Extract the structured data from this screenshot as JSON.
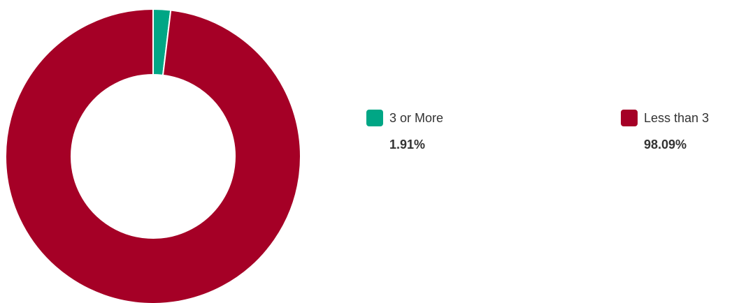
{
  "chart_data": {
    "type": "pie",
    "variant": "donut",
    "categories": [
      "3 or More",
      "Less than 3"
    ],
    "values": [
      1.91,
      98.09
    ],
    "value_labels": [
      "1.91%",
      "98.09%"
    ],
    "colors": [
      "#00a685",
      "#a50026"
    ],
    "legend_position": "right",
    "start_angle": "top, clockwise"
  }
}
